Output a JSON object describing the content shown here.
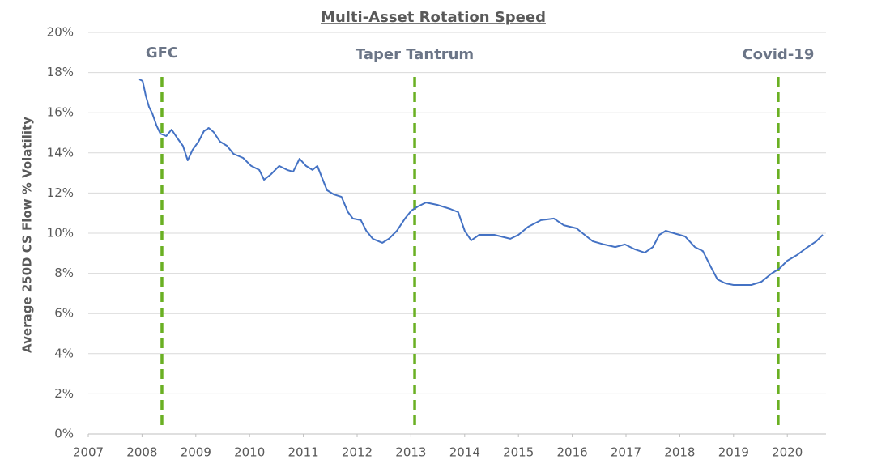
{
  "chart_data": {
    "type": "line",
    "title": "Multi-Asset Rotation Speed",
    "y_label": "Average 250D CS Flow % Volatility",
    "color": "#4472c4",
    "annotation_color": "#6ab023",
    "grid": true,
    "xlim": [
      2007,
      2020.72
    ],
    "xticks": [
      2007,
      2008,
      2009,
      2010,
      2011,
      2012,
      2013,
      2014,
      2015,
      2016,
      2017,
      2018,
      2019,
      2020
    ],
    "ylim": [
      0,
      20
    ],
    "yticks": [
      {
        "value": 0,
        "label": "0%"
      },
      {
        "value": 2,
        "label": "2%"
      },
      {
        "value": 4,
        "label": "4%"
      },
      {
        "value": 6,
        "label": "6%"
      },
      {
        "value": 8,
        "label": "8%"
      },
      {
        "value": 10,
        "label": "10%"
      },
      {
        "value": 12,
        "label": "12%"
      },
      {
        "value": 14,
        "label": "14%"
      },
      {
        "value": 16,
        "label": "16%"
      },
      {
        "value": 18,
        "label": "18%"
      },
      {
        "value": 20,
        "label": "20%"
      }
    ],
    "annotations": [
      {
        "label": "GFC",
        "x": 2008.37
      },
      {
        "label": "Taper Tantrum",
        "x": 2013.07
      },
      {
        "label": "Covid-19",
        "x": 2019.83
      }
    ],
    "x": [
      2007.95,
      2008.01,
      2008.07,
      2008.13,
      2008.19,
      2008.27,
      2008.34,
      2008.45,
      2008.55,
      2008.67,
      2008.76,
      2008.85,
      2008.94,
      2009.05,
      2009.15,
      2009.24,
      2009.33,
      2009.45,
      2009.58,
      2009.7,
      2009.88,
      2010.03,
      2010.18,
      2010.27,
      2010.4,
      2010.55,
      2010.7,
      2010.81,
      2010.93,
      2011.05,
      2011.17,
      2011.26,
      2011.35,
      2011.44,
      2011.56,
      2011.71,
      2011.83,
      2011.92,
      2012.07,
      2012.17,
      2012.29,
      2012.47,
      2012.59,
      2012.74,
      2012.89,
      2013.01,
      2013.13,
      2013.28,
      2013.49,
      2013.73,
      2013.88,
      2014.0,
      2014.12,
      2014.27,
      2014.55,
      2014.85,
      2015.0,
      2015.18,
      2015.42,
      2015.66,
      2015.84,
      2016.08,
      2016.23,
      2016.38,
      2016.59,
      2016.8,
      2016.98,
      2017.17,
      2017.35,
      2017.5,
      2017.62,
      2017.74,
      2017.89,
      2018.1,
      2018.28,
      2018.43,
      2018.58,
      2018.7,
      2018.85,
      2019.0,
      2019.15,
      2019.33,
      2019.52,
      2019.7,
      2019.85,
      2020.0,
      2020.18,
      2020.36,
      2020.54,
      2020.66
    ],
    "values": [
      17.66,
      17.58,
      16.85,
      16.29,
      15.97,
      15.36,
      14.96,
      14.84,
      15.16,
      14.68,
      14.35,
      13.63,
      14.15,
      14.56,
      15.08,
      15.24,
      15.04,
      14.56,
      14.35,
      13.95,
      13.75,
      13.35,
      13.15,
      12.66,
      12.94,
      13.35,
      13.15,
      13.06,
      13.71,
      13.35,
      13.15,
      13.35,
      12.74,
      12.14,
      11.94,
      11.81,
      11.05,
      10.73,
      10.65,
      10.12,
      9.72,
      9.52,
      9.72,
      10.12,
      10.73,
      11.13,
      11.33,
      11.53,
      11.41,
      11.21,
      11.05,
      10.12,
      9.64,
      9.92,
      9.92,
      9.72,
      9.92,
      10.32,
      10.65,
      10.73,
      10.4,
      10.24,
      9.92,
      9.6,
      9.44,
      9.31,
      9.44,
      9.19,
      9.03,
      9.31,
      9.92,
      10.12,
      10.0,
      9.84,
      9.31,
      9.11,
      8.31,
      7.7,
      7.5,
      7.42,
      7.42,
      7.42,
      7.58,
      7.98,
      8.23,
      8.63,
      8.91,
      9.27,
      9.6,
      9.92
    ]
  }
}
